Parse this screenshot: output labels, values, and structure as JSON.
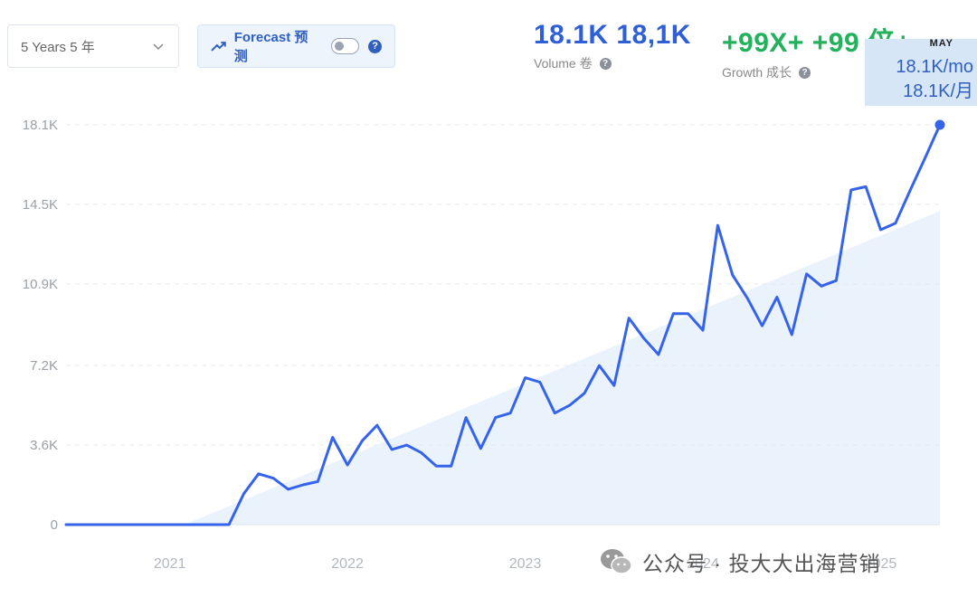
{
  "controls": {
    "range_label": "5 Years 5 年",
    "forecast_label": "Forecast 预测",
    "forecast_on": false
  },
  "metrics": {
    "volume": {
      "value": "18.1K 18,1K",
      "label": "Volume 卷"
    },
    "growth": {
      "value": "+99X+ +99 倍+",
      "label": "Growth 成长"
    }
  },
  "tooltip": {
    "month": "MAY",
    "line1": "18.1K/mo",
    "line2": "18.1K/月"
  },
  "watermark": {
    "text": "公众号 · 投大大出海营销",
    "icon": "wechat-icon"
  },
  "colors": {
    "line": "#3563e9",
    "trend_fill": "#eaf2fc",
    "volume": "#2f5fd6",
    "growth": "#23b25c"
  },
  "chart_data": {
    "type": "line",
    "title": "",
    "xlabel": "",
    "ylabel": "",
    "y_ticks": [
      {
        "value": 0,
        "label": "0"
      },
      {
        "value": 3600,
        "label": "3.6K"
      },
      {
        "value": 7200,
        "label": "7.2K"
      },
      {
        "value": 10900,
        "label": "10.9K"
      },
      {
        "value": 14500,
        "label": "14.5K"
      },
      {
        "value": 18100,
        "label": "18.1K"
      }
    ],
    "x_ticks": [
      {
        "value": "2021-01",
        "label": "2021"
      },
      {
        "value": "2022-01",
        "label": "2022"
      },
      {
        "value": "2023-01",
        "label": "2023"
      },
      {
        "value": "2024-01",
        "label": "2024"
      },
      {
        "value": "2025-01",
        "label": "2025"
      }
    ],
    "ylim": [
      0,
      18100
    ],
    "xlim": [
      "2020-06",
      "2025-05"
    ],
    "grid": true,
    "trend_area": {
      "start": [
        "2021-02",
        0
      ],
      "end": [
        "2025-05",
        14200
      ]
    },
    "series": [
      {
        "values": [
          [
            "2020-06",
            0
          ],
          [
            "2020-07",
            0
          ],
          [
            "2020-08",
            0
          ],
          [
            "2020-09",
            0
          ],
          [
            "2020-10",
            0
          ],
          [
            "2020-11",
            0
          ],
          [
            "2020-12",
            0
          ],
          [
            "2021-01",
            0
          ],
          [
            "2021-02",
            0
          ],
          [
            "2021-03",
            0
          ],
          [
            "2021-04",
            0
          ],
          [
            "2021-05",
            0
          ],
          [
            "2021-06",
            1400
          ],
          [
            "2021-07",
            2300
          ],
          [
            "2021-08",
            2100
          ],
          [
            "2021-09",
            1600
          ],
          [
            "2021-10",
            1800
          ],
          [
            "2021-11",
            1950
          ],
          [
            "2021-12",
            3950
          ],
          [
            "2022-01",
            2700
          ],
          [
            "2022-02",
            3800
          ],
          [
            "2022-03",
            4500
          ],
          [
            "2022-04",
            3400
          ],
          [
            "2022-05",
            3600
          ],
          [
            "2022-06",
            3250
          ],
          [
            "2022-07",
            2650
          ],
          [
            "2022-08",
            2650
          ],
          [
            "2022-09",
            4850
          ],
          [
            "2022-10",
            3450
          ],
          [
            "2022-11",
            4850
          ],
          [
            "2022-12",
            5050
          ],
          [
            "2023-01",
            6650
          ],
          [
            "2023-02",
            6450
          ],
          [
            "2023-03",
            5050
          ],
          [
            "2023-04",
            5400
          ],
          [
            "2023-05",
            5950
          ],
          [
            "2023-06",
            7200
          ],
          [
            "2023-07",
            6300
          ],
          [
            "2023-08",
            9350
          ],
          [
            "2023-09",
            8450
          ],
          [
            "2023-10",
            7700
          ],
          [
            "2023-11",
            9550
          ],
          [
            "2023-12",
            9550
          ],
          [
            "2024-01",
            8800
          ],
          [
            "2024-02",
            13550
          ],
          [
            "2024-03",
            11300
          ],
          [
            "2024-04",
            10250
          ],
          [
            "2024-05",
            9000
          ],
          [
            "2024-06",
            10300
          ],
          [
            "2024-07",
            8600
          ],
          [
            "2024-08",
            11350
          ],
          [
            "2024-09",
            10800
          ],
          [
            "2024-10",
            11050
          ],
          [
            "2024-11",
            15150
          ],
          [
            "2024-12",
            15300
          ],
          [
            "2025-01",
            13350
          ],
          [
            "2025-02",
            13650
          ],
          [
            "2025-03",
            15150
          ],
          [
            "2025-04",
            16600
          ],
          [
            "2025-05",
            18100
          ]
        ]
      }
    ]
  }
}
